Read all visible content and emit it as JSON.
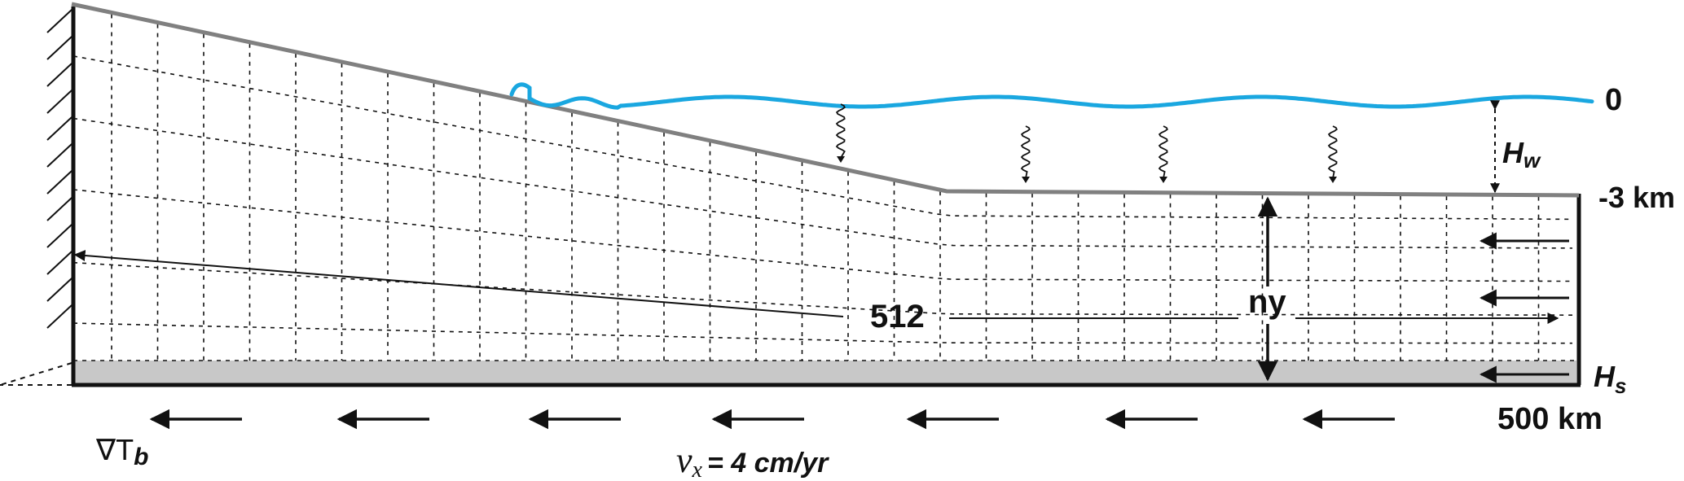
{
  "labels": {
    "sea_level": "0",
    "depth": "-3 km",
    "water_depth": "H",
    "water_depth_sub": "w",
    "sediment_thickness": "H",
    "sediment_thickness_sub": "s",
    "length": "500 km",
    "nx": "512",
    "ny": "ny",
    "gradient": "∇T",
    "gradient_sub": "b",
    "velocity_symbol": "v",
    "velocity_sub": "x",
    "velocity_value": "= 4 cm/yr"
  },
  "colors": {
    "water": "#1aa7e0",
    "surface": "#808080",
    "sediment_layer": "#c8c8c8",
    "ink": "#111111"
  },
  "icons": {
    "heat_flux_arrows": "wavy-arrow-icon",
    "velocity_arrows": "left-arrow-icon",
    "fixed_wall": "hatched-wall-icon"
  }
}
